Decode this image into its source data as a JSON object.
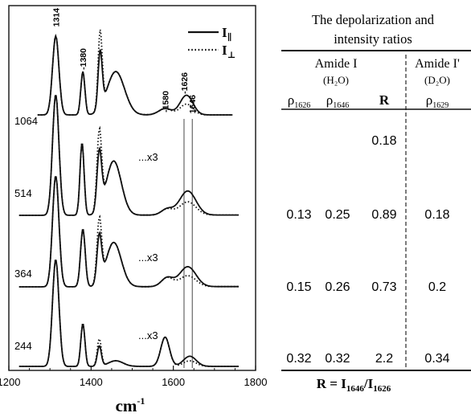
{
  "chart_data": {
    "type": "line",
    "xlabel": "cm",
    "xlabel_sup": "-1",
    "xlim": [
      1200,
      1800
    ],
    "xticks": [
      "1200",
      "1400",
      "1600",
      "1800"
    ],
    "legend": {
      "placement": "top-right",
      "entries": [
        {
          "name": "I",
          "sub": "∥",
          "style": "solid"
        },
        {
          "name": "I",
          "sub": "⊥",
          "style": "dotted"
        }
      ]
    },
    "peak_labels": [
      "1314",
      "-1380",
      "-1580",
      "-1626",
      "1646"
    ],
    "spectra": [
      {
        "excitation": "1064",
        "multiplier": "",
        "xrange": [
          1270,
          1745
        ]
      },
      {
        "excitation": "514",
        "multiplier": "x3",
        "xrange": [
          1225,
          1760
        ]
      },
      {
        "excitation": "364",
        "multiplier": "x3",
        "xrange": [
          1225,
          1760
        ]
      },
      {
        "excitation": "244",
        "multiplier": "x3",
        "xrange": [
          1225,
          1760
        ]
      }
    ]
  },
  "table": {
    "title_line1": "The depolarization and",
    "title_line2": "intensity ratios",
    "group1_label": "Amide I",
    "group1_solvent": "(H₂O)",
    "group2_label": "Amide I'",
    "group2_solvent": "(D₂O)",
    "columns": [
      {
        "sym": "ρ",
        "sub": "1626"
      },
      {
        "sym": "ρ",
        "sub": "1646"
      },
      {
        "sym": "R",
        "sub": ""
      },
      {
        "sym": "ρ",
        "sub": "1629"
      }
    ],
    "rows": [
      [
        "",
        "",
        "0.18",
        ""
      ],
      [
        "0.13",
        "0.25",
        "0.89",
        "0.18"
      ],
      [
        "0.15",
        "0.26",
        "0.73",
        "0.2"
      ],
      [
        "0.32",
        "0.32",
        "2.2",
        "0.34"
      ]
    ],
    "footer_formula": {
      "lhs": "R",
      "num": "I",
      "num_sub": "1646",
      "den": "I",
      "den_sub": "1626"
    }
  }
}
